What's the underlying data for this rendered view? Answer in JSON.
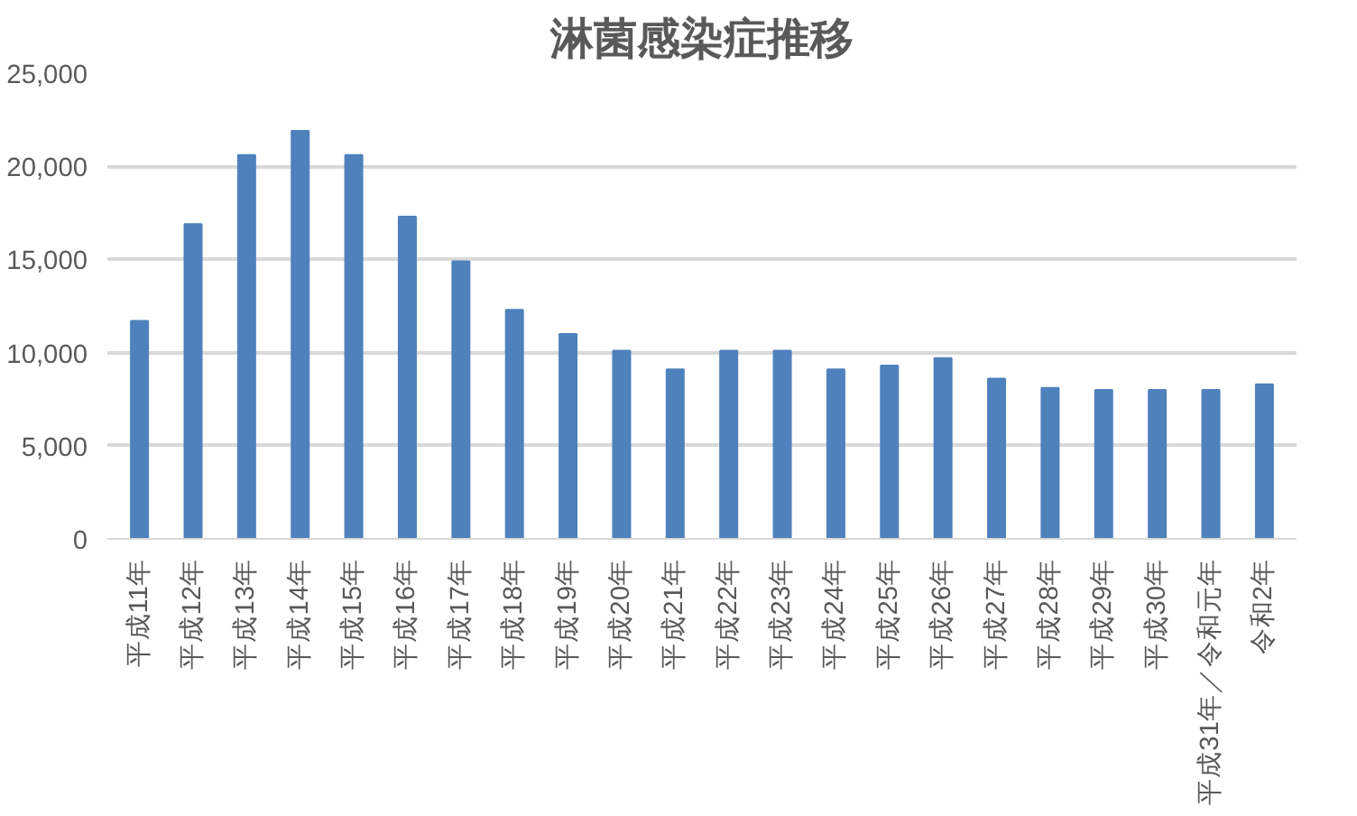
{
  "chart_data": {
    "type": "bar",
    "title": "淋菌感染症推移",
    "categories": [
      "平成11年",
      "平成12年",
      "平成13年",
      "平成14年",
      "平成15年",
      "平成16年",
      "平成17年",
      "平成18年",
      "平成19年",
      "平成20年",
      "平成21年",
      "平成22年",
      "平成23年",
      "平成24年",
      "平成25年",
      "平成26年",
      "平成27年",
      "平成28年",
      "平成29年",
      "平成30年",
      "平成31年／令和元年",
      "令和2年"
    ],
    "values": [
      11700,
      16900,
      20600,
      21900,
      20600,
      17300,
      14900,
      12300,
      11000,
      10100,
      9100,
      10100,
      10100,
      9100,
      9300,
      9700,
      8600,
      8100,
      8000,
      8000,
      8000,
      8300
    ],
    "color": "#4f81bd",
    "ylim": [
      0,
      25000
    ],
    "yticks": [
      {
        "value": 0,
        "label": "0"
      },
      {
        "value": 5000,
        "label": "5,000"
      },
      {
        "value": 10000,
        "label": "10,000"
      },
      {
        "value": 15000,
        "label": "15,000"
      },
      {
        "value": 20000,
        "label": "20,000"
      },
      {
        "value": 25000,
        "label": "25,000"
      }
    ],
    "grid": "y"
  }
}
